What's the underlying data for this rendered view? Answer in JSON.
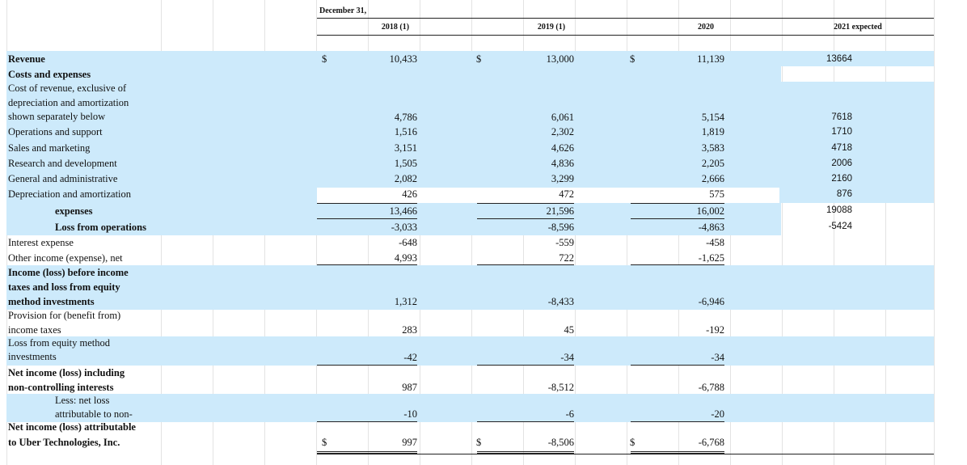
{
  "header": {
    "period_label": "December 31,",
    "col_2018": "2018 (1)",
    "col_2019": "2019 (1)",
    "col_2020": "2020",
    "col_2021": "2021 expected"
  },
  "currency_symbol": "$",
  "rows": {
    "revenue": {
      "label": "Revenue",
      "v2018": "10,433",
      "v2019": "13,000",
      "v2020": "11,139",
      "v2021": "13664"
    },
    "costs_header": {
      "label": "Costs and expenses"
    },
    "cost_of_revenue": {
      "line1": "Cost of revenue, exclusive of",
      "line2": "depreciation and amortization",
      "line3": "shown separately below",
      "v2018": "4,786",
      "v2019": "6,061",
      "v2020": "5,154",
      "v2021": "7618"
    },
    "operations": {
      "label": "Operations and support",
      "v2018": "1,516",
      "v2019": "2,302",
      "v2020": "1,819",
      "v2021": "1710"
    },
    "sales": {
      "label": "Sales and marketing",
      "v2018": "3,151",
      "v2019": "4,626",
      "v2020": "3,583",
      "v2021": "4718"
    },
    "rnd": {
      "label": "Research and development",
      "v2018": "1,505",
      "v2019": "4,836",
      "v2020": "2,205",
      "v2021": "2006"
    },
    "gna": {
      "label": "General and administrative",
      "v2018": "2,082",
      "v2019": "3,299",
      "v2020": "2,666",
      "v2021": "2160"
    },
    "dna": {
      "label": "Depreciation and amortization",
      "v2018": "426",
      "v2019": "472",
      "v2020": "575",
      "v2021": "876"
    },
    "expenses": {
      "label": "expenses",
      "v2018": "13,466",
      "v2019": "21,596",
      "v2020": "16,002",
      "v2021": "19088"
    },
    "loss_ops": {
      "label": "Loss from operations",
      "v2018": "-3,033",
      "v2019": "-8,596",
      "v2020": "-4,863",
      "v2021": "-5424"
    },
    "interest": {
      "label": "Interest expense",
      "v2018": "-648",
      "v2019": "-559",
      "v2020": "-458"
    },
    "other_income": {
      "label": "Other income (expense), net",
      "v2018": "4,993",
      "v2019": "722",
      "v2020": "-1,625"
    },
    "income_before": {
      "line1": "Income (loss) before income",
      "line2": "taxes and loss from equity",
      "line3": "method investments",
      "v2018": "1,312",
      "v2019": "-8,433",
      "v2020": "-6,946"
    },
    "provision": {
      "line1": "Provision for (benefit from)",
      "line2": "income taxes",
      "v2018": "283",
      "v2019": "45",
      "v2020": "-192"
    },
    "equity_loss": {
      "line1": "Loss from equity method",
      "line2": "investments",
      "v2018": "-42",
      "v2019": "-34",
      "v2020": "-34"
    },
    "net_incl": {
      "line1": "Net income (loss) including",
      "line2": "non-controlling interests",
      "v2018": "987",
      "v2019": "-8,512",
      "v2020": "-6,788"
    },
    "less_nci": {
      "line1": "Less: net loss",
      "line2": "attributable to non-",
      "v2018": "-10",
      "v2019": "-6",
      "v2020": "-20"
    },
    "net_attr": {
      "line1": "Net income (loss) attributable",
      "line2": "to Uber Technologies, Inc.",
      "v2018": "997",
      "v2019": "-8,506",
      "v2020": "-6,768"
    }
  }
}
